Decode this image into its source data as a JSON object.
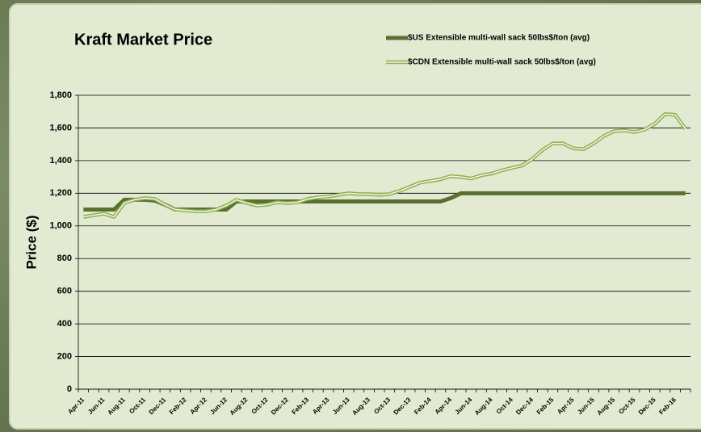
{
  "chart_data": {
    "type": "line",
    "title": "Kraft Market Price",
    "y_label": "Price ($)",
    "categories": [
      "Apr-11",
      null,
      "Jun-11",
      null,
      "Aug-11",
      null,
      "Oct-11",
      null,
      "Dec-11",
      null,
      "Feb-12",
      null,
      "Apr-12",
      null,
      "Jun-12",
      null,
      "Aug-12",
      null,
      "Oct-12",
      null,
      "Dec-12",
      null,
      "Feb-13",
      null,
      "Apr-13",
      null,
      "Jun-13",
      null,
      "Aug-13",
      null,
      "Oct-13",
      null,
      "Dec-13",
      null,
      "Feb-14",
      null,
      "Apr-14",
      null,
      "Jun-14",
      null,
      "Aug-14",
      null,
      "Oct-14",
      null,
      "Dec-14",
      null,
      "Feb-15",
      null,
      "Apr-15",
      null,
      "Jun-15",
      null,
      "Aug-15",
      null,
      "Oct-15",
      null,
      "Dec-15",
      null,
      "Feb-16",
      null
    ],
    "series": [
      {
        "name": "$US Extensible multi-wall sack 50lbs$/ton (avg)",
        "color": "#5a7030",
        "values": [
          1100,
          1100,
          1100,
          1100,
          1160,
          1160,
          1160,
          1155,
          1130,
          1100,
          1100,
          1100,
          1100,
          1100,
          1100,
          1150,
          1150,
          1150,
          1150,
          1150,
          1150,
          1150,
          1150,
          1150,
          1150,
          1150,
          1150,
          1150,
          1150,
          1150,
          1150,
          1150,
          1150,
          1150,
          1150,
          1150,
          1170,
          1200,
          1200,
          1200,
          1200,
          1200,
          1200,
          1200,
          1200,
          1200,
          1200,
          1200,
          1200,
          1200,
          1200,
          1200,
          1200,
          1200,
          1200,
          1200,
          1200,
          1200,
          1200,
          1200
        ]
      },
      {
        "name": "$CDN Extensible multi-wall sack 50lbs$/ton (avg)",
        "color": "#8fae4f",
        "values": [
          1055,
          1065,
          1075,
          1055,
          1140,
          1160,
          1170,
          1165,
          1130,
          1100,
          1095,
          1090,
          1090,
          1100,
          1125,
          1160,
          1140,
          1125,
          1130,
          1145,
          1140,
          1145,
          1165,
          1175,
          1180,
          1190,
          1200,
          1195,
          1195,
          1190,
          1195,
          1215,
          1240,
          1265,
          1275,
          1285,
          1305,
          1300,
          1290,
          1310,
          1320,
          1340,
          1355,
          1370,
          1410,
          1465,
          1505,
          1505,
          1475,
          1470,
          1505,
          1550,
          1580,
          1585,
          1575,
          1590,
          1625,
          1685,
          1680,
          1595
        ]
      }
    ],
    "ylim": [
      0,
      1800
    ],
    "yticks": [
      0,
      200,
      400,
      600,
      800,
      {
        "value": 1000,
        "label": "1,000"
      },
      {
        "value": 1200,
        "label": "1,200"
      },
      {
        "value": 1400,
        "label": "1,400"
      },
      {
        "value": 1600,
        "label": "1,600"
      },
      {
        "value": 1800,
        "label": "1,800"
      }
    ],
    "grid": true
  }
}
